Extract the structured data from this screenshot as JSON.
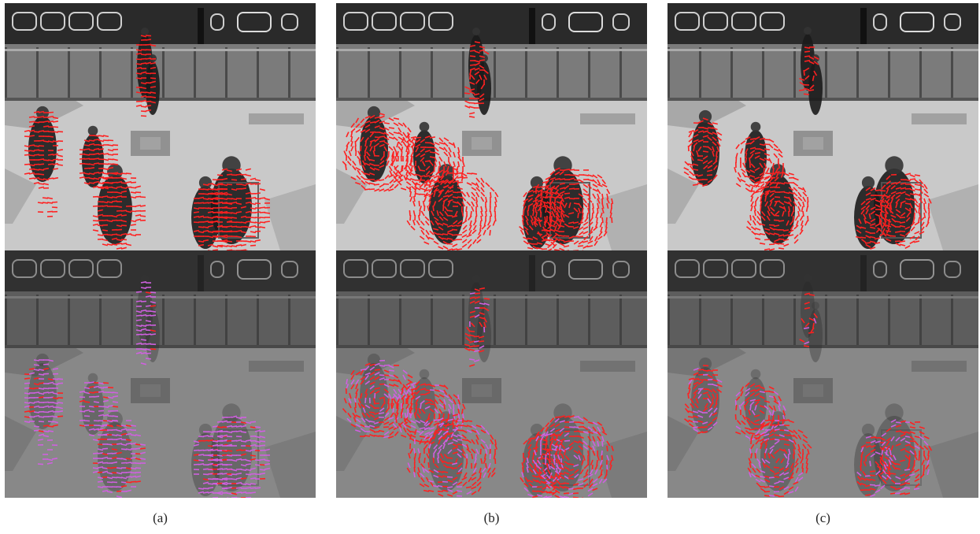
{
  "captions": [
    "(a)",
    "(b)",
    "(c)"
  ],
  "colors": {
    "vector_red": "#ff2020",
    "vector_magenta": "#d060e0",
    "floor_light": "#c9c9c9",
    "floor_mid": "#9a9a9a",
    "train_dark": "#2a2a2a",
    "person_dark": "#1b1b1b"
  },
  "panels": [
    {
      "caption_index": 0,
      "top_layer": "red-vectors",
      "bottom_layer": "magenta-red-vectors"
    },
    {
      "caption_index": 1,
      "top_layer": "red-vectors",
      "bottom_layer": "magenta-red-vectors"
    },
    {
      "caption_index": 2,
      "top_layer": "red-vectors",
      "bottom_layer": "magenta-red-vectors"
    }
  ]
}
